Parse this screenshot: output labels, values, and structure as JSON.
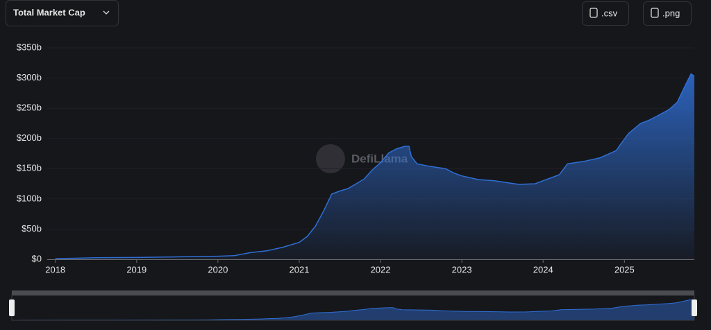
{
  "header": {
    "title": "Total Market Cap",
    "buttons": [
      ".csv",
      ".png"
    ]
  },
  "chart_data": {
    "type": "area",
    "watermark": "DefiLlama",
    "x": [
      2018.0,
      2018.5,
      2019.0,
      2019.5,
      2020.0,
      2020.2,
      2020.4,
      2020.6,
      2020.8,
      2021.0,
      2021.1,
      2021.2,
      2021.3,
      2021.4,
      2021.5,
      2021.6,
      2021.7,
      2021.8,
      2021.9,
      2022.0,
      2022.1,
      2022.2,
      2022.3,
      2022.35,
      2022.38,
      2022.45,
      2022.6,
      2022.8,
      2022.9,
      2023.0,
      2023.2,
      2023.4,
      2023.6,
      2023.7,
      2023.9,
      2024.0,
      2024.2,
      2024.3,
      2024.5,
      2024.7,
      2024.8,
      2024.9,
      2024.95,
      2025.05,
      2025.2,
      2025.3,
      2025.4,
      2025.55,
      2025.65,
      2025.75,
      2025.82,
      2025.86
    ],
    "values": [
      1,
      2.5,
      3,
      4,
      5,
      6,
      11,
      14,
      20,
      28,
      38,
      55,
      80,
      108,
      113,
      117,
      125,
      133,
      148,
      160,
      176,
      183,
      187,
      187,
      170,
      158,
      154,
      150,
      143,
      138,
      132,
      130,
      126,
      124,
      125,
      130,
      140,
      158,
      162,
      168,
      174,
      180,
      190,
      208,
      225,
      230,
      237,
      248,
      260,
      288,
      307,
      303
    ],
    "color": "#2f6fd6",
    "xlim": [
      2017.9,
      2025.86
    ],
    "xticks": [
      2018,
      2019,
      2020,
      2021,
      2022,
      2023,
      2024,
      2025
    ],
    "ylim": [
      0,
      350
    ],
    "yticks": [
      {
        "value": 0,
        "label": "$0"
      },
      {
        "value": 50,
        "label": "$50b"
      },
      {
        "value": 100,
        "label": "$100b"
      },
      {
        "value": 150,
        "label": "$150b"
      },
      {
        "value": 200,
        "label": "$200b"
      },
      {
        "value": 250,
        "label": "$250b"
      },
      {
        "value": 300,
        "label": "$300b"
      },
      {
        "value": 350,
        "label": "$350b"
      }
    ],
    "grid": true
  }
}
